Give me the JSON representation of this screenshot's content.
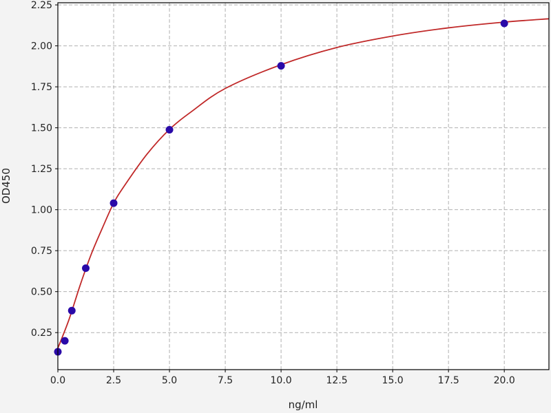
{
  "chart_data": {
    "type": "scatter",
    "title": "",
    "xlabel": "ng/ml",
    "ylabel": "OD450",
    "xlim": [
      0,
      22
    ],
    "ylim": [
      0.024,
      2.263
    ],
    "xticks": [
      0,
      2.5,
      5,
      7.5,
      10,
      12.5,
      15,
      17.5,
      20
    ],
    "xtick_labels": [
      "0.0",
      "2.5",
      "5.0",
      "7.5",
      "10.0",
      "12.5",
      "15.0",
      "17.5",
      "20.0"
    ],
    "yticks": [
      0.25,
      0.5,
      0.75,
      1.0,
      1.25,
      1.5,
      1.75,
      2.0,
      2.25
    ],
    "ytick_labels": [
      "0.25",
      "0.50",
      "0.75",
      "1.00",
      "1.25",
      "1.50",
      "1.75",
      "2.00",
      "2.25"
    ],
    "grid": true,
    "series": [
      {
        "kind": "points",
        "color": "#2a0aa8",
        "x": [
          0,
          0.3125,
          0.625,
          1.25,
          2.5,
          5,
          10,
          20
        ],
        "y": [
          0.133,
          0.2,
          0.384,
          0.643,
          1.04,
          1.488,
          1.878,
          2.137
        ]
      },
      {
        "kind": "fit-curve",
        "color": "#c02828",
        "x": [
          0,
          0.5,
          1,
          1.5,
          2,
          2.5,
          3,
          4,
          5,
          6,
          7.5,
          10,
          12.5,
          15,
          17.5,
          20,
          22
        ],
        "y": [
          0.155,
          0.33,
          0.54,
          0.73,
          0.89,
          1.04,
          1.15,
          1.34,
          1.49,
          1.6,
          1.74,
          1.885,
          1.99,
          2.06,
          2.11,
          2.145,
          2.165
        ]
      }
    ]
  }
}
